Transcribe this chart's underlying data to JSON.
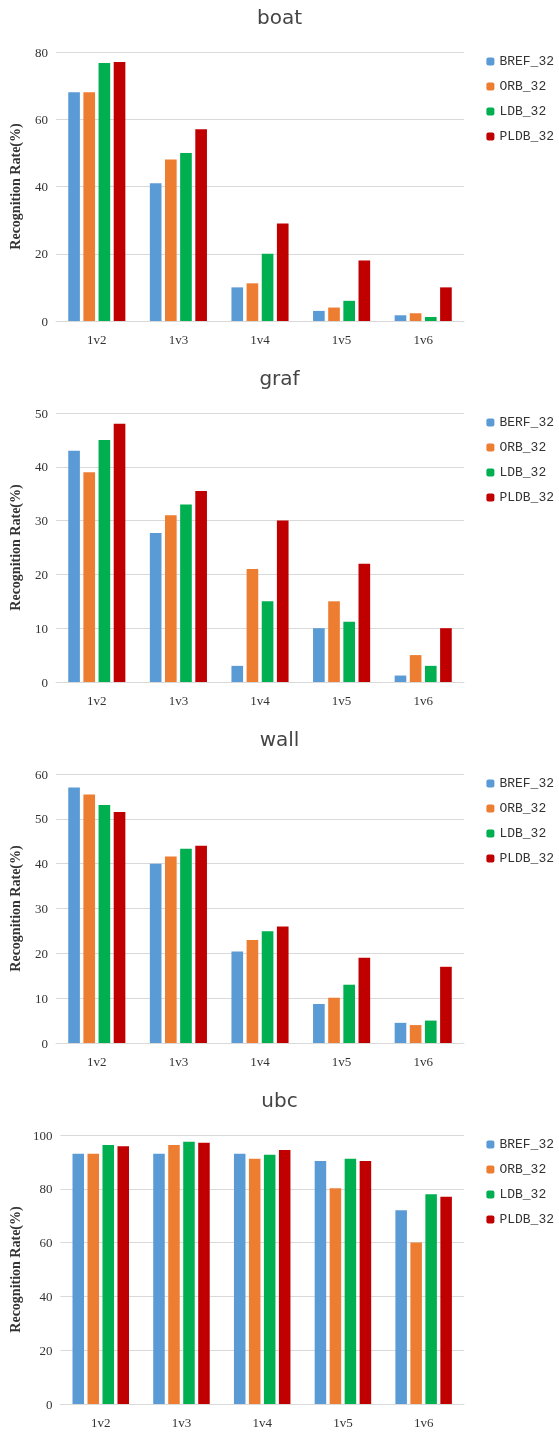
{
  "chart_data": [
    {
      "type": "bar",
      "title": "boat",
      "ylabel": "Recognition Rate(%)",
      "categories": [
        "1v2",
        "1v3",
        "1v4",
        "1v5",
        "1v6"
      ],
      "ylim": [
        0,
        80
      ],
      "yticks": [
        0,
        20,
        40,
        60,
        80
      ],
      "grid": "y",
      "legend": "top right",
      "series": [
        {
          "name": "BREF_32",
          "color": "#5b9bd5",
          "values": [
            68,
            41,
            10,
            3,
            1.7
          ]
        },
        {
          "name": "ORB_32",
          "color": "#ed7d31",
          "values": [
            68,
            48,
            11.2,
            4,
            2.3
          ]
        },
        {
          "name": "LDB_32",
          "color": "#00b050",
          "values": [
            76.7,
            50,
            20,
            6,
            1.2
          ]
        },
        {
          "name": "PLDB_32",
          "color": "#c00000",
          "values": [
            77,
            57,
            29,
            18,
            10
          ]
        }
      ]
    },
    {
      "type": "bar",
      "title": "graf",
      "ylabel": "Recognition Rate(%)",
      "categories": [
        "1v2",
        "1v3",
        "1v4",
        "1v5",
        "1v6"
      ],
      "ylim": [
        0,
        50
      ],
      "yticks": [
        0,
        10,
        20,
        30,
        40,
        50
      ],
      "grid": "y",
      "legend": "top right",
      "series": [
        {
          "name": "BERF_32",
          "color": "#5b9bd5",
          "values": [
            43,
            27.7,
            3,
            10,
            1.2
          ]
        },
        {
          "name": "ORB_32",
          "color": "#ed7d31",
          "values": [
            39,
            31,
            21,
            15,
            5
          ]
        },
        {
          "name": "LDB_32",
          "color": "#00b050",
          "values": [
            45,
            33,
            15,
            11.2,
            3
          ]
        },
        {
          "name": "PLDB_32",
          "color": "#c00000",
          "values": [
            48,
            35.5,
            30,
            22,
            10
          ]
        }
      ]
    },
    {
      "type": "bar",
      "title": "wall",
      "ylabel": "Recognition Rate(%)",
      "categories": [
        "1v2",
        "1v3",
        "1v4",
        "1v5",
        "1v6"
      ],
      "ylim": [
        0,
        60
      ],
      "yticks": [
        0,
        10,
        20,
        30,
        40,
        50,
        60
      ],
      "grid": "y",
      "legend": "top right",
      "series": [
        {
          "name": "BREF_32",
          "color": "#5b9bd5",
          "values": [
            57,
            40,
            20.4,
            8.7,
            4.5
          ]
        },
        {
          "name": "ORB_32",
          "color": "#ed7d31",
          "values": [
            55.4,
            41.6,
            23,
            10.1,
            4
          ]
        },
        {
          "name": "LDB_32",
          "color": "#00b050",
          "values": [
            53.1,
            43.3,
            24.9,
            13,
            5
          ]
        },
        {
          "name": "PLDB_32",
          "color": "#c00000",
          "values": [
            51.5,
            44,
            26,
            19,
            17
          ]
        }
      ]
    },
    {
      "type": "bar",
      "title": "ubc",
      "ylabel": "Recognition Rate(%)",
      "categories": [
        "1v2",
        "1v3",
        "1v4",
        "1v5",
        "1v6"
      ],
      "ylim": [
        0,
        100
      ],
      "yticks": [
        0,
        20,
        40,
        60,
        80,
        100
      ],
      "grid": "y",
      "legend": "top right",
      "series": [
        {
          "name": "BREF_32",
          "color": "#5b9bd5",
          "values": [
            93,
            93,
            93,
            90.3,
            72
          ]
        },
        {
          "name": "ORB_32",
          "color": "#ed7d31",
          "values": [
            93,
            96.3,
            91.2,
            80.2,
            60
          ]
        },
        {
          "name": "LDB_32",
          "color": "#00b050",
          "values": [
            96.3,
            97.5,
            92.7,
            91.2,
            78
          ]
        },
        {
          "name": "PLDB_32",
          "color": "#c00000",
          "values": [
            95.8,
            97.1,
            94.4,
            90.3,
            77
          ]
        }
      ]
    }
  ]
}
